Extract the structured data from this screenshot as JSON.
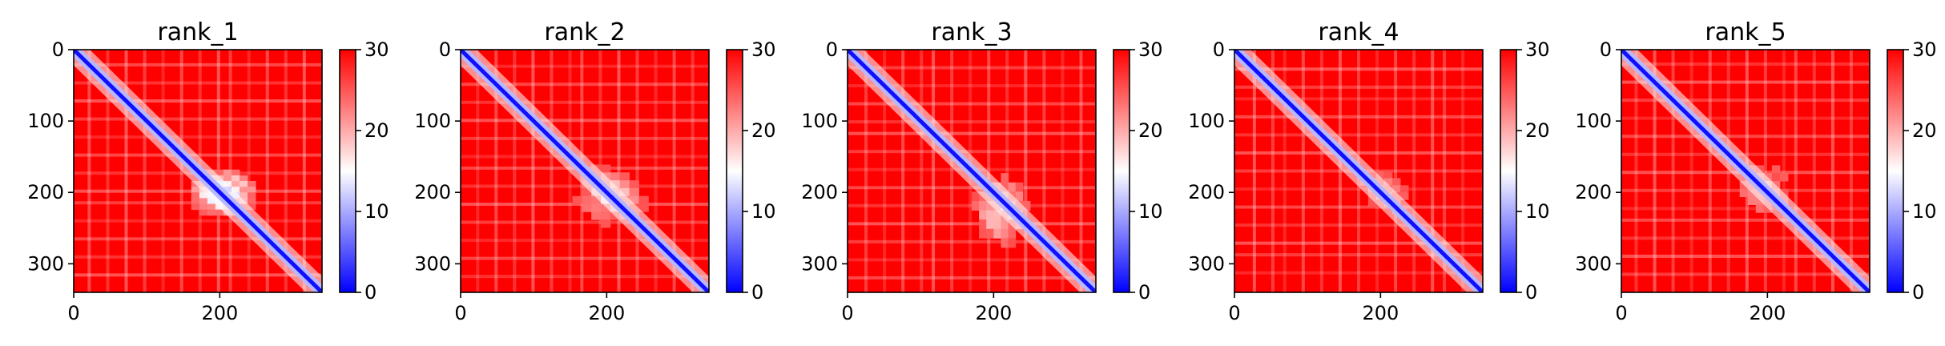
{
  "chart_data": [
    {
      "type": "heatmap",
      "title": "rank_1",
      "xlim": [
        0,
        340
      ],
      "ylim": [
        340,
        0
      ],
      "xticks": [
        0,
        200
      ],
      "yticks": [
        0,
        100,
        200,
        300
      ],
      "colorbar": {
        "min": 0,
        "max": 30,
        "ticks": [
          0,
          10,
          20,
          30
        ],
        "colors": [
          "#0000ff",
          "#ffffff",
          "#ff0000"
        ]
      },
      "blue_blocks": [
        {
          "x0": 150,
          "x1": 260,
          "y0": 160,
          "y1": 240,
          "level": 0.75
        }
      ]
    },
    {
      "type": "heatmap",
      "title": "rank_2",
      "xlim": [
        0,
        340
      ],
      "ylim": [
        340,
        0
      ],
      "xticks": [
        0,
        200
      ],
      "yticks": [
        0,
        100,
        200,
        300
      ],
      "colorbar": {
        "min": 0,
        "max": 30,
        "ticks": [
          0,
          10,
          20,
          30
        ],
        "colors": [
          "#0000ff",
          "#ffffff",
          "#ff0000"
        ]
      },
      "blue_blocks": [
        {
          "x0": 140,
          "x1": 270,
          "y0": 150,
          "y1": 260,
          "level": 0.45
        }
      ]
    },
    {
      "type": "heatmap",
      "title": "rank_3",
      "xlim": [
        0,
        340
      ],
      "ylim": [
        340,
        0
      ],
      "xticks": [
        0,
        200
      ],
      "yticks": [
        0,
        100,
        200,
        300
      ],
      "colorbar": {
        "min": 0,
        "max": 30,
        "ticks": [
          0,
          10,
          20,
          30
        ],
        "colors": [
          "#0000ff",
          "#ffffff",
          "#ff0000"
        ]
      },
      "blue_blocks": [
        {
          "x0": 160,
          "x1": 260,
          "y0": 160,
          "y1": 290,
          "level": 0.5
        }
      ]
    },
    {
      "type": "heatmap",
      "title": "rank_4",
      "xlim": [
        0,
        340
      ],
      "ylim": [
        340,
        0
      ],
      "xticks": [
        0,
        200
      ],
      "yticks": [
        0,
        100,
        200,
        300
      ],
      "colorbar": {
        "min": 0,
        "max": 30,
        "ticks": [
          0,
          10,
          20,
          30
        ],
        "colors": [
          "#0000ff",
          "#ffffff",
          "#ff0000"
        ]
      },
      "blue_blocks": [
        {
          "x0": 150,
          "x1": 260,
          "y0": 150,
          "y1": 250,
          "level": 0.3
        }
      ]
    },
    {
      "type": "heatmap",
      "title": "rank_5",
      "xlim": [
        0,
        340
      ],
      "ylim": [
        340,
        0
      ],
      "xticks": [
        0,
        200
      ],
      "yticks": [
        0,
        100,
        200,
        300
      ],
      "colorbar": {
        "min": 0,
        "max": 30,
        "ticks": [
          0,
          10,
          20,
          30
        ],
        "colors": [
          "#0000ff",
          "#ffffff",
          "#ff0000"
        ]
      },
      "blue_blocks": [
        {
          "x0": 140,
          "x1": 250,
          "y0": 140,
          "y1": 250,
          "level": 0.35
        }
      ]
    }
  ]
}
